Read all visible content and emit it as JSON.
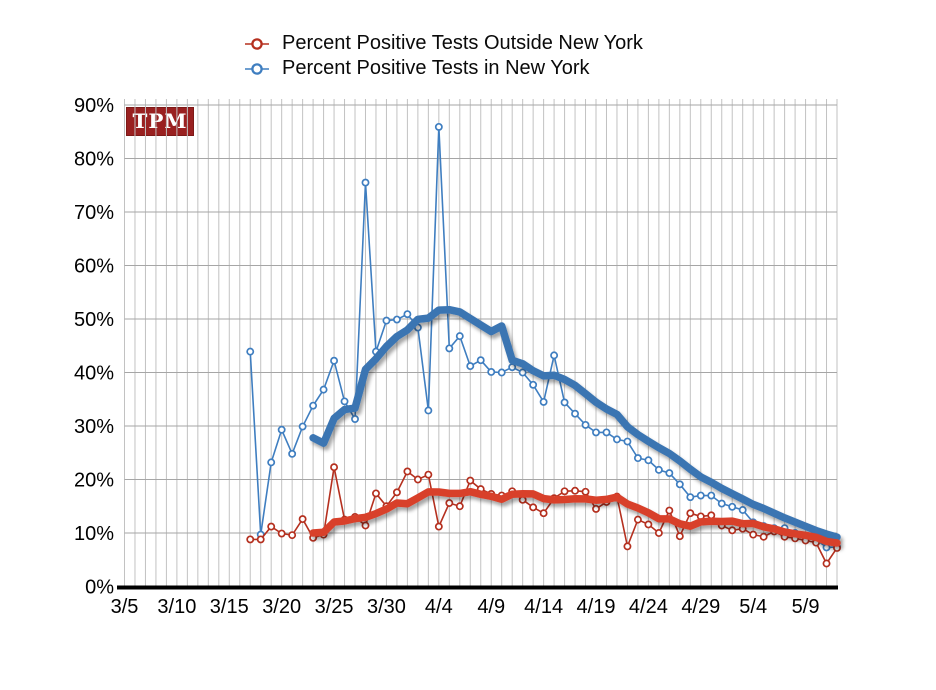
{
  "branding": {
    "logo_text": "TPM"
  },
  "legend": [
    {
      "label": "Percent Positive Tests Outside New York",
      "color": "#b5301f"
    },
    {
      "label": "Percent Positive Tests in New York",
      "color": "#3f7ec0"
    }
  ],
  "chart_data": {
    "type": "line",
    "title": "",
    "xlabel": "",
    "ylabel": "",
    "grid": true,
    "legend_position": "top",
    "x": [
      "3/17",
      "3/18",
      "3/19",
      "3/20",
      "3/21",
      "3/22",
      "3/23",
      "3/24",
      "3/25",
      "3/26",
      "3/27",
      "3/28",
      "3/29",
      "3/30",
      "3/31",
      "4/1",
      "4/2",
      "4/3",
      "4/4",
      "4/5",
      "4/6",
      "4/7",
      "4/8",
      "4/9",
      "4/10",
      "4/11",
      "4/12",
      "4/13",
      "4/14",
      "4/15",
      "4/16",
      "4/17",
      "4/18",
      "4/19",
      "4/20",
      "4/21",
      "4/22",
      "4/23",
      "4/24",
      "4/25",
      "4/26",
      "4/27",
      "4/28",
      "4/29",
      "4/30",
      "5/1",
      "5/2",
      "5/3",
      "5/4",
      "5/5",
      "5/6",
      "5/7",
      "5/8",
      "5/9",
      "5/10",
      "5/11",
      "5/12"
    ],
    "series": [
      {
        "name": "Percent Positive Tests Outside New York",
        "color": "#b5301f",
        "trend_color": "#d8402c",
        "values": [
          8.8,
          8.8,
          11.2,
          9.9,
          9.6,
          12.6,
          9.1,
          9.7,
          22.3,
          12.5,
          13.0,
          11.4,
          17.4,
          15.0,
          17.6,
          21.5,
          20.0,
          20.9,
          11.2,
          15.6,
          15.0,
          19.8,
          18.2,
          17.3,
          17.0,
          17.8,
          16.2,
          14.8,
          13.7,
          16.5,
          17.8,
          17.9,
          17.7,
          14.5,
          15.8,
          16.8,
          7.5,
          12.5,
          11.6,
          10.0,
          14.2,
          9.4,
          13.7,
          13.1,
          13.3,
          11.4,
          10.5,
          10.8,
          9.7,
          9.3,
          10.3,
          9.3,
          9.0,
          8.6,
          8.2,
          4.3,
          7.2
        ]
      },
      {
        "name": "Percent Positive Tests in New York",
        "color": "#3f7ec0",
        "trend_color": "#3a74b2",
        "values": [
          43.9,
          9.7,
          23.2,
          29.3,
          24.8,
          29.9,
          33.8,
          36.8,
          42.2,
          34.6,
          31.3,
          75.5,
          43.9,
          49.7,
          49.9,
          50.9,
          48.4,
          32.9,
          85.9,
          44.5,
          46.8,
          41.2,
          42.3,
          40.1,
          40.0,
          41.0,
          40.0,
          37.7,
          34.5,
          43.2,
          34.4,
          32.3,
          30.2,
          28.8,
          28.8,
          27.5,
          27.1,
          24.0,
          23.6,
          21.8,
          21.2,
          19.1,
          16.7,
          17.0,
          17.0,
          15.5,
          14.9,
          14.3,
          12.0,
          11.3,
          10.9,
          10.9,
          10.0,
          9.4,
          8.8,
          7.3,
          7.4
        ]
      }
    ],
    "trend": {
      "type": "trailing-moving-average",
      "window": 7
    },
    "x_axis": {
      "tick_labels": [
        "3/5",
        "3/10",
        "3/15",
        "3/20",
        "3/25",
        "3/30",
        "4/4",
        "4/9",
        "4/14",
        "4/19",
        "4/24",
        "4/29",
        "5/4",
        "5/9"
      ],
      "range": [
        "3/5",
        "5/12"
      ]
    },
    "y_axis": {
      "tick_labels": [
        "0%",
        "10%",
        "20%",
        "30%",
        "40%",
        "50%",
        "60%",
        "70%",
        "80%",
        "90%"
      ],
      "min": 0,
      "max": 90,
      "unit": "%"
    }
  }
}
